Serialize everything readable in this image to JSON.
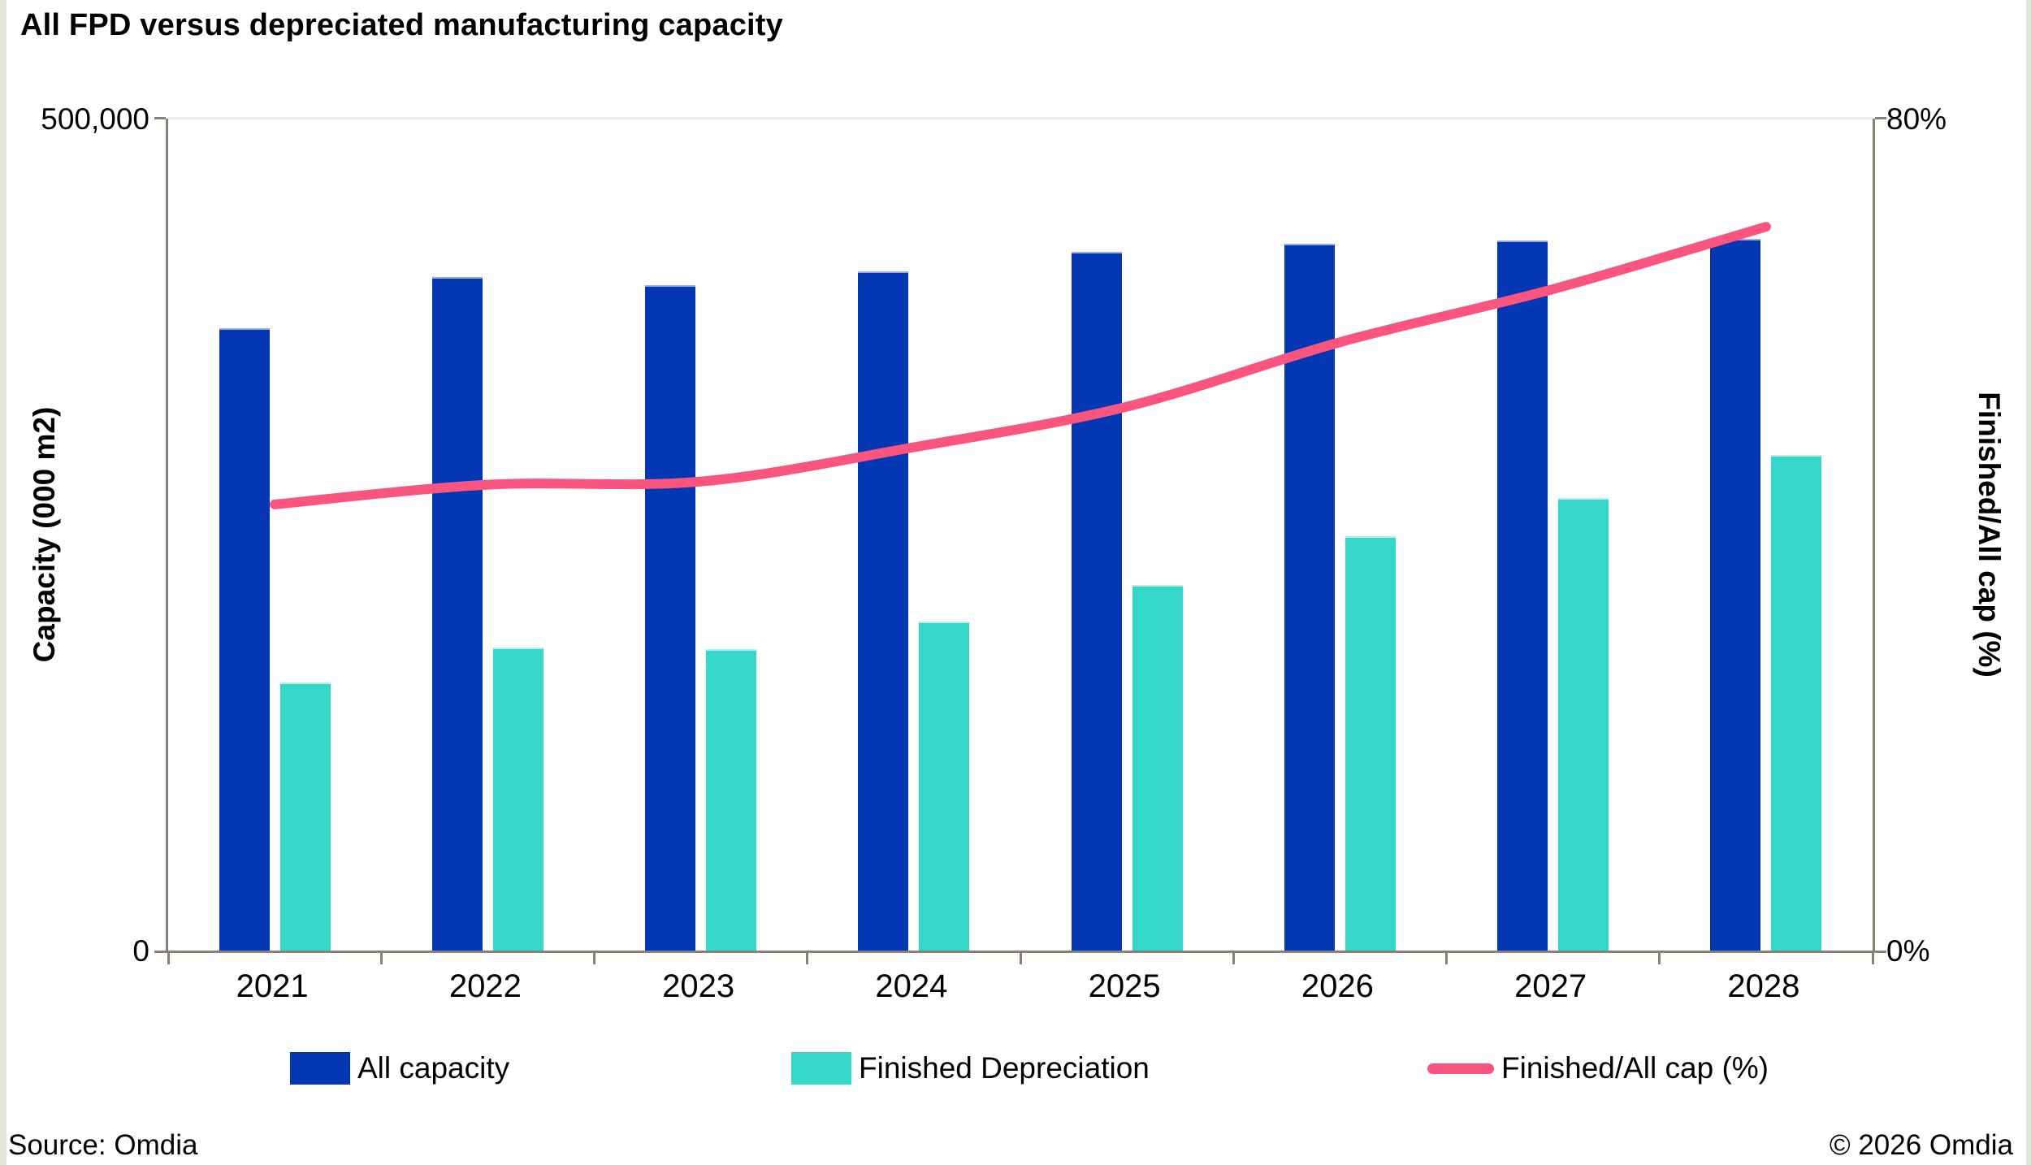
{
  "title": "All FPD versus depreciated manufacturing capacity",
  "axes": {
    "left": {
      "title": "Capacity (000 m2)",
      "top_label": "500,000",
      "bottom_label": "0"
    },
    "right": {
      "title": "Finished/All cap (%)",
      "top_label": "80%",
      "bottom_label": "0%"
    }
  },
  "legend": [
    {
      "label": "All capacity",
      "type": "bar",
      "color": "#0437b3"
    },
    {
      "label": "Finished Depreciation",
      "type": "bar",
      "color": "#35d7ca"
    },
    {
      "label": "Finished/All cap (%)",
      "type": "line",
      "color": "#f9557e"
    }
  ],
  "colors": {
    "all_capacity": "#0437b3",
    "finished_depreciation": "#35d7ca",
    "ratio_line": "#f9557e",
    "axis": "#8a8076",
    "gridline": "#ececea"
  },
  "footer": {
    "source": "Source: Omdia",
    "copyright": "© 2026 Omdia"
  },
  "chart_data": {
    "type": "bar",
    "subtype": "grouped bars with overlay line, dual axis",
    "title": "All FPD versus depreciated manufacturing capacity",
    "categories": [
      "2021",
      "2022",
      "2023",
      "2024",
      "2025",
      "2026",
      "2027",
      "2028"
    ],
    "series": [
      {
        "name": "All capacity",
        "type": "bar",
        "axis": "left",
        "values": [
          373000,
          404000,
          399000,
          407000,
          419000,
          424000,
          426000,
          427000
        ]
      },
      {
        "name": "Finished Depreciation",
        "type": "bar",
        "axis": "left",
        "values": [
          160000,
          181000,
          180000,
          197000,
          219000,
          248000,
          271000,
          297000
        ]
      },
      {
        "name": "Finished/All cap (%)",
        "type": "line",
        "axis": "right",
        "values": [
          42.9,
          44.8,
          45.1,
          48.4,
          52.3,
          58.5,
          63.6,
          69.6
        ]
      }
    ],
    "left_axis": {
      "label": "Capacity (000 m2)",
      "range": [
        0,
        500000
      ],
      "tick_labels": [
        "0",
        "500,000"
      ]
    },
    "right_axis": {
      "label": "Finished/All cap (%)",
      "range": [
        0,
        80
      ],
      "tick_labels": [
        "0%",
        "80%"
      ]
    },
    "grid": "single light gridline at top (500,000 / 80%)",
    "legend_position": "bottom"
  }
}
